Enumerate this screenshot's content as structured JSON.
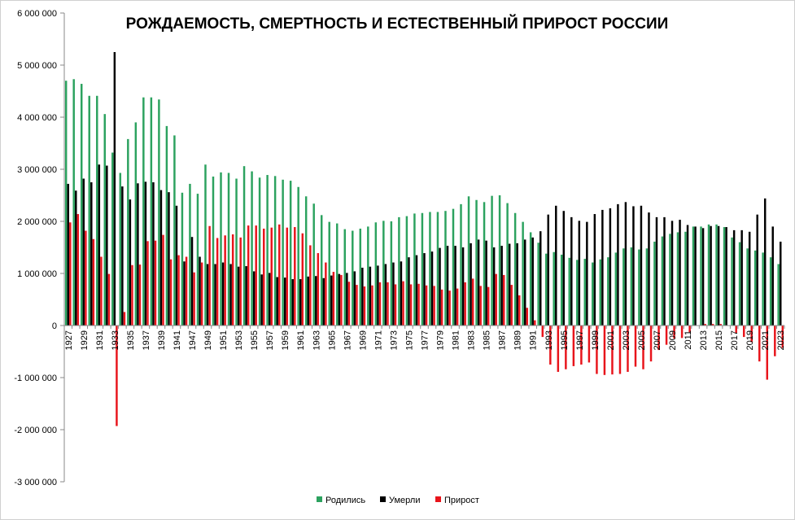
{
  "chart_data": {
    "type": "bar",
    "title": "РОЖДАЕМОСТЬ, СМЕРТНОСТЬ И ЕСТЕСТВЕННЫЙ ПРИРОСТ РОССИИ",
    "xlabel": "",
    "ylabel": "",
    "ylim": [
      -3000000,
      6000000
    ],
    "y_ticks": [
      6000000,
      5000000,
      4000000,
      3000000,
      2000000,
      1000000,
      0,
      -1000000,
      -2000000,
      -3000000
    ],
    "y_tick_labels": [
      "6 000 000",
      "5 000 000",
      "4 000 000",
      "3 000 000",
      "2 000 000",
      "1 000 000",
      "0",
      "-1 000 000",
      "-2 000 000",
      "-3 000 000"
    ],
    "x_tick_labels": [
      "1927",
      "1929",
      "1931",
      "1933",
      "1935",
      "1937",
      "1939",
      "1941",
      "1947",
      "1949",
      "1951",
      "1953",
      "1955",
      "1957",
      "1959",
      "1961",
      "1963",
      "1965",
      "1967",
      "1969",
      "1971",
      "1973",
      "1975",
      "1977",
      "1979",
      "1981",
      "1983",
      "1985",
      "1987",
      "1989",
      "1991",
      "1993",
      "1995",
      "1997",
      "1999",
      "2001",
      "2003",
      "2005",
      "2007",
      "2009",
      "2011",
      "2013",
      "2015",
      "2017",
      "2019",
      "2021",
      "2023"
    ],
    "grid": false,
    "legend_position": "bottom",
    "categories": [
      "1927",
      "1928",
      "1929",
      "1930",
      "1931",
      "1932",
      "1933",
      "1934",
      "1935",
      "1936",
      "1937",
      "1938",
      "1939",
      "1940",
      "1941",
      "1946",
      "1947",
      "1948",
      "1949",
      "1950",
      "1951",
      "1952",
      "1953",
      "1954",
      "1955",
      "1956",
      "1957",
      "1958",
      "1959",
      "1960",
      "1961",
      "1962",
      "1963",
      "1964",
      "1965",
      "1966",
      "1967",
      "1968",
      "1969",
      "1970",
      "1971",
      "1972",
      "1973",
      "1974",
      "1975",
      "1976",
      "1977",
      "1978",
      "1979",
      "1980",
      "1981",
      "1982",
      "1983",
      "1984",
      "1985",
      "1986",
      "1987",
      "1988",
      "1989",
      "1990",
      "1991",
      "1992",
      "1993",
      "1994",
      "1995",
      "1996",
      "1997",
      "1998",
      "1999",
      "2000",
      "2001",
      "2002",
      "2003",
      "2004",
      "2005",
      "2006",
      "2007",
      "2008",
      "2009",
      "2010",
      "2011",
      "2012",
      "2013",
      "2014",
      "2015",
      "2016",
      "2017",
      "2018",
      "2019",
      "2020",
      "2021",
      "2022",
      "2023"
    ],
    "series": [
      {
        "name": "Родились",
        "color": "#2ca25f",
        "values": [
          4700000,
          4730000,
          4640000,
          4410000,
          4410000,
          4060000,
          3320000,
          2930000,
          3580000,
          3900000,
          4380000,
          4380000,
          4340000,
          3830000,
          3650000,
          2550000,
          2720000,
          2530000,
          3090000,
          2860000,
          2940000,
          2930000,
          2820000,
          3060000,
          2960000,
          2840000,
          2890000,
          2870000,
          2800000,
          2780000,
          2660000,
          2480000,
          2340000,
          2120000,
          1990000,
          1960000,
          1850000,
          1820000,
          1860000,
          1900000,
          1980000,
          2010000,
          2000000,
          2080000,
          2100000,
          2150000,
          2160000,
          2180000,
          2180000,
          2200000,
          2240000,
          2330000,
          2480000,
          2410000,
          2370000,
          2490000,
          2500000,
          2350000,
          2160000,
          1990000,
          1790000,
          1590000,
          1380000,
          1410000,
          1360000,
          1300000,
          1260000,
          1280000,
          1210000,
          1270000,
          1310000,
          1400000,
          1480000,
          1500000,
          1460000,
          1480000,
          1610000,
          1710000,
          1760000,
          1790000,
          1800000,
          1900000,
          1900000,
          1940000,
          1940000,
          1890000,
          1690000,
          1600000,
          1480000,
          1440000,
          1400000,
          1310000,
          1180000
        ]
      },
      {
        "name": "Умерли",
        "color": "#000000",
        "values": [
          2720000,
          2590000,
          2820000,
          2750000,
          3090000,
          3070000,
          5250000,
          2670000,
          2420000,
          2730000,
          2760000,
          2750000,
          2600000,
          2560000,
          2300000,
          1230000,
          1700000,
          1320000,
          1180000,
          1180000,
          1210000,
          1180000,
          1130000,
          1140000,
          1040000,
          980000,
          1010000,
          930000,
          920000,
          890000,
          890000,
          940000,
          950000,
          910000,
          960000,
          990000,
          1010000,
          1040000,
          1110000,
          1130000,
          1150000,
          1180000,
          1210000,
          1230000,
          1310000,
          1350000,
          1390000,
          1420000,
          1490000,
          1530000,
          1530000,
          1500000,
          1580000,
          1650000,
          1630000,
          1500000,
          1530000,
          1570000,
          1580000,
          1650000,
          1690000,
          1810000,
          2130000,
          2300000,
          2200000,
          2080000,
          2010000,
          1990000,
          2140000,
          2220000,
          2250000,
          2330000,
          2370000,
          2290000,
          2300000,
          2170000,
          2080000,
          2080000,
          2010000,
          2030000,
          1930000,
          1900000,
          1870000,
          1910000,
          1910000,
          1890000,
          1830000,
          1830000,
          1800000,
          2130000,
          2440000,
          1900000,
          1610000
        ]
      },
      {
        "name": "Прирост",
        "color": "#e8141b",
        "values": [
          1980000,
          2140000,
          1820000,
          1660000,
          1320000,
          990000,
          -1930000,
          260000,
          1160000,
          1170000,
          1620000,
          1630000,
          1740000,
          1270000,
          1350000,
          1320000,
          1020000,
          1210000,
          1910000,
          1680000,
          1730000,
          1750000,
          1690000,
          1920000,
          1920000,
          1860000,
          1880000,
          1940000,
          1880000,
          1890000,
          1770000,
          1540000,
          1390000,
          1210000,
          1030000,
          970000,
          840000,
          780000,
          750000,
          770000,
          830000,
          830000,
          790000,
          850000,
          790000,
          800000,
          770000,
          760000,
          690000,
          670000,
          710000,
          830000,
          900000,
          760000,
          740000,
          990000,
          970000,
          780000,
          580000,
          340000,
          100000,
          -220000,
          -750000,
          -890000,
          -840000,
          -780000,
          -750000,
          -710000,
          -930000,
          -950000,
          -940000,
          -930000,
          -890000,
          -790000,
          -840000,
          -690000,
          -470000,
          -370000,
          -250000,
          -240000,
          -130000,
          -4000,
          30000,
          30000,
          30000,
          -2000,
          -140000,
          -220000,
          -320000,
          -690000,
          -1040000,
          -590000,
          -430000
        ]
      }
    ]
  }
}
